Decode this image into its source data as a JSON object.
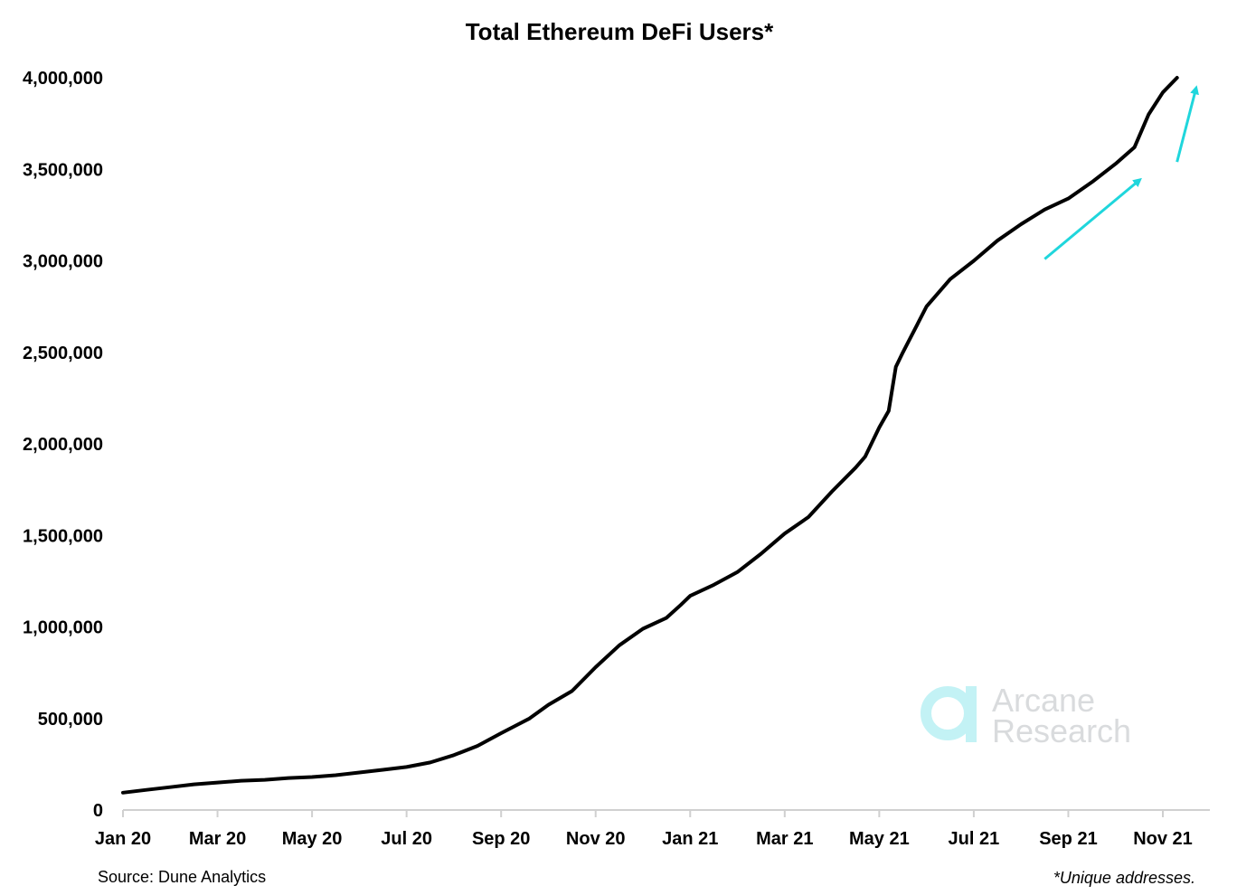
{
  "chart_data": {
    "type": "line",
    "title": "Total Ethereum DeFi Users*",
    "xlabel": "",
    "ylabel": "",
    "ylim": [
      0,
      4000000
    ],
    "grid": false,
    "y_ticks": [
      {
        "value": 0,
        "label": "0"
      },
      {
        "value": 500000,
        "label": "500,000"
      },
      {
        "value": 1000000,
        "label": "1,000,000"
      },
      {
        "value": 1500000,
        "label": "1,500,000"
      },
      {
        "value": 2000000,
        "label": "2,000,000"
      },
      {
        "value": 2500000,
        "label": "2,500,000"
      },
      {
        "value": 3000000,
        "label": "3,000,000"
      },
      {
        "value": 3500000,
        "label": "3,500,000"
      },
      {
        "value": 4000000,
        "label": "4,000,000"
      }
    ],
    "x_ticks": [
      {
        "value": 0,
        "label": "Jan 20"
      },
      {
        "value": 2,
        "label": "Mar 20"
      },
      {
        "value": 4,
        "label": "May 20"
      },
      {
        "value": 6,
        "label": "Jul 20"
      },
      {
        "value": 8,
        "label": "Sep 20"
      },
      {
        "value": 10,
        "label": "Nov 20"
      },
      {
        "value": 12,
        "label": "Jan 21"
      },
      {
        "value": 14,
        "label": "Mar 21"
      },
      {
        "value": 16,
        "label": "May 21"
      },
      {
        "value": 18,
        "label": "Jul 21"
      },
      {
        "value": 20,
        "label": "Sep 21"
      },
      {
        "value": 22,
        "label": "Nov 21"
      }
    ],
    "xlim": [
      0,
      23
    ],
    "series": [
      {
        "color": "#000000",
        "points": [
          [
            0,
            95000
          ],
          [
            0.5,
            110000
          ],
          [
            1,
            125000
          ],
          [
            1.5,
            140000
          ],
          [
            2,
            150000
          ],
          [
            2.5,
            160000
          ],
          [
            3,
            165000
          ],
          [
            3.5,
            175000
          ],
          [
            4,
            180000
          ],
          [
            4.5,
            190000
          ],
          [
            5,
            205000
          ],
          [
            5.5,
            220000
          ],
          [
            6,
            235000
          ],
          [
            6.5,
            260000
          ],
          [
            7,
            300000
          ],
          [
            7.5,
            350000
          ],
          [
            8,
            420000
          ],
          [
            8.3,
            460000
          ],
          [
            8.6,
            500000
          ],
          [
            9,
            575000
          ],
          [
            9.5,
            650000
          ],
          [
            10,
            780000
          ],
          [
            10.5,
            900000
          ],
          [
            11,
            990000
          ],
          [
            11.5,
            1050000
          ],
          [
            11.8,
            1120000
          ],
          [
            12,
            1170000
          ],
          [
            12.5,
            1230000
          ],
          [
            13,
            1300000
          ],
          [
            13.5,
            1400000
          ],
          [
            14,
            1510000
          ],
          [
            14.5,
            1600000
          ],
          [
            15,
            1740000
          ],
          [
            15.5,
            1870000
          ],
          [
            15.7,
            1930000
          ],
          [
            16,
            2090000
          ],
          [
            16.2,
            2180000
          ],
          [
            16.35,
            2420000
          ],
          [
            16.5,
            2500000
          ],
          [
            16.8,
            2650000
          ],
          [
            17,
            2750000
          ],
          [
            17.5,
            2900000
          ],
          [
            18,
            3000000
          ],
          [
            18.5,
            3110000
          ],
          [
            19,
            3200000
          ],
          [
            19.5,
            3280000
          ],
          [
            20,
            3340000
          ],
          [
            20.5,
            3430000
          ],
          [
            21,
            3530000
          ],
          [
            21.4,
            3620000
          ],
          [
            21.7,
            3800000
          ],
          [
            22,
            3920000
          ],
          [
            22.3,
            4000000
          ]
        ]
      }
    ],
    "annotations": [
      {
        "type": "arrow",
        "color": "#1fd6dc",
        "from": [
          19.5,
          3010000
        ],
        "to": [
          21.5,
          3440000
        ]
      },
      {
        "type": "arrow",
        "color": "#1fd6dc",
        "from": [
          22.3,
          3540000
        ],
        "to": [
          22.7,
          3940000
        ]
      }
    ]
  },
  "footer": {
    "source": "Source: Dune Analytics",
    "footnote": "*Unique addresses."
  },
  "watermark": {
    "line1": "Arcane",
    "line2": "Research",
    "icon": "arcane-research-logo-icon",
    "color": "#b9f3f5"
  }
}
